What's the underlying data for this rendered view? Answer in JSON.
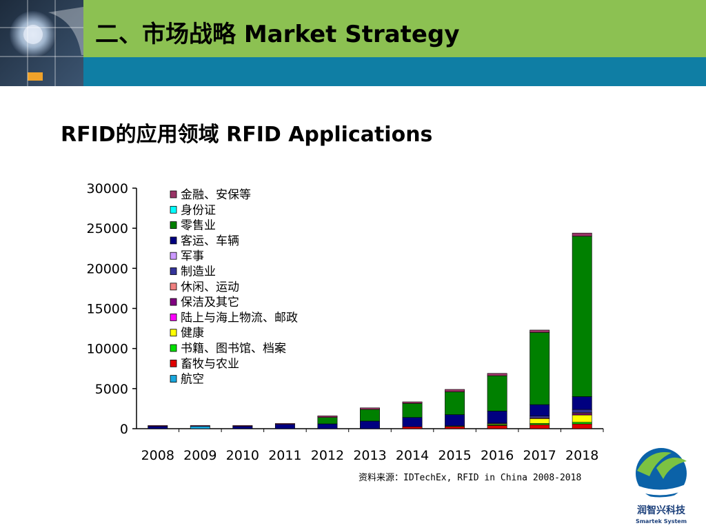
{
  "header": {
    "title": "二、市场战略 Market Strategy"
  },
  "section": {
    "title": "RFID的应用领域 RFID Applications"
  },
  "source": {
    "text": "资料来源：IDTechEx, RFID in China 2008-2018"
  },
  "logo": {
    "name_cn": "润智兴科技",
    "name_en": "Smartek System"
  },
  "chart_data": {
    "type": "bar",
    "stacked": true,
    "categories": [
      "2008",
      "2009",
      "2010",
      "2011",
      "2012",
      "2013",
      "2014",
      "2015",
      "2016",
      "2017",
      "2018"
    ],
    "ylim": [
      0,
      30000
    ],
    "yticks": [
      0,
      5000,
      10000,
      15000,
      20000,
      25000,
      30000
    ],
    "legend_position": "top-left",
    "series": [
      {
        "name": "航空",
        "color": "#19a7dd",
        "values": [
          0,
          300,
          0,
          0,
          0,
          0,
          0,
          0,
          0,
          0,
          0
        ]
      },
      {
        "name": "畜牧与农业",
        "color": "#e00000",
        "values": [
          0,
          0,
          0,
          0,
          0,
          0,
          250,
          300,
          400,
          500,
          600
        ]
      },
      {
        "name": "书籍、图书馆、档案",
        "color": "#00e000",
        "values": [
          0,
          0,
          0,
          0,
          0,
          0,
          0,
          50,
          100,
          150,
          200
        ]
      },
      {
        "name": "健康",
        "color": "#ffff00",
        "values": [
          0,
          0,
          0,
          0,
          0,
          0,
          0,
          0,
          100,
          600,
          900
        ]
      },
      {
        "name": "陆上与海上物流、邮政",
        "color": "#ff00ff",
        "values": [
          0,
          0,
          0,
          0,
          0,
          0,
          0,
          0,
          0,
          0,
          100
        ]
      },
      {
        "name": "保洁及其它",
        "color": "#800080",
        "values": [
          0,
          0,
          0,
          0,
          0,
          0,
          0,
          0,
          0,
          0,
          100
        ]
      },
      {
        "name": "休闲、运动",
        "color": "#f08080",
        "values": [
          0,
          0,
          0,
          0,
          0,
          0,
          0,
          0,
          0,
          100,
          100
        ]
      },
      {
        "name": "制造业",
        "color": "#333399",
        "values": [
          0,
          0,
          0,
          0,
          0,
          0,
          0,
          0,
          100,
          250,
          400
        ]
      },
      {
        "name": "军事",
        "color": "#cc99ff",
        "values": [
          0,
          0,
          0,
          0,
          0,
          0,
          0,
          0,
          0,
          0,
          0
        ]
      },
      {
        "name": "客运、车辆",
        "color": "#000080",
        "values": [
          300,
          0,
          300,
          550,
          600,
          950,
          1150,
          1400,
          1500,
          1400,
          1600
        ]
      },
      {
        "name": "零售业",
        "color": "#008000",
        "values": [
          0,
          0,
          0,
          0,
          800,
          1450,
          1750,
          2850,
          4400,
          9000,
          20000
        ]
      },
      {
        "name": "身份证",
        "color": "#00ffff",
        "values": [
          0,
          0,
          0,
          0,
          0,
          0,
          0,
          0,
          0,
          0,
          0
        ]
      },
      {
        "name": "金融、安保等",
        "color": "#993366",
        "values": [
          100,
          100,
          100,
          100,
          200,
          200,
          200,
          300,
          300,
          300,
          400
        ]
      }
    ]
  }
}
